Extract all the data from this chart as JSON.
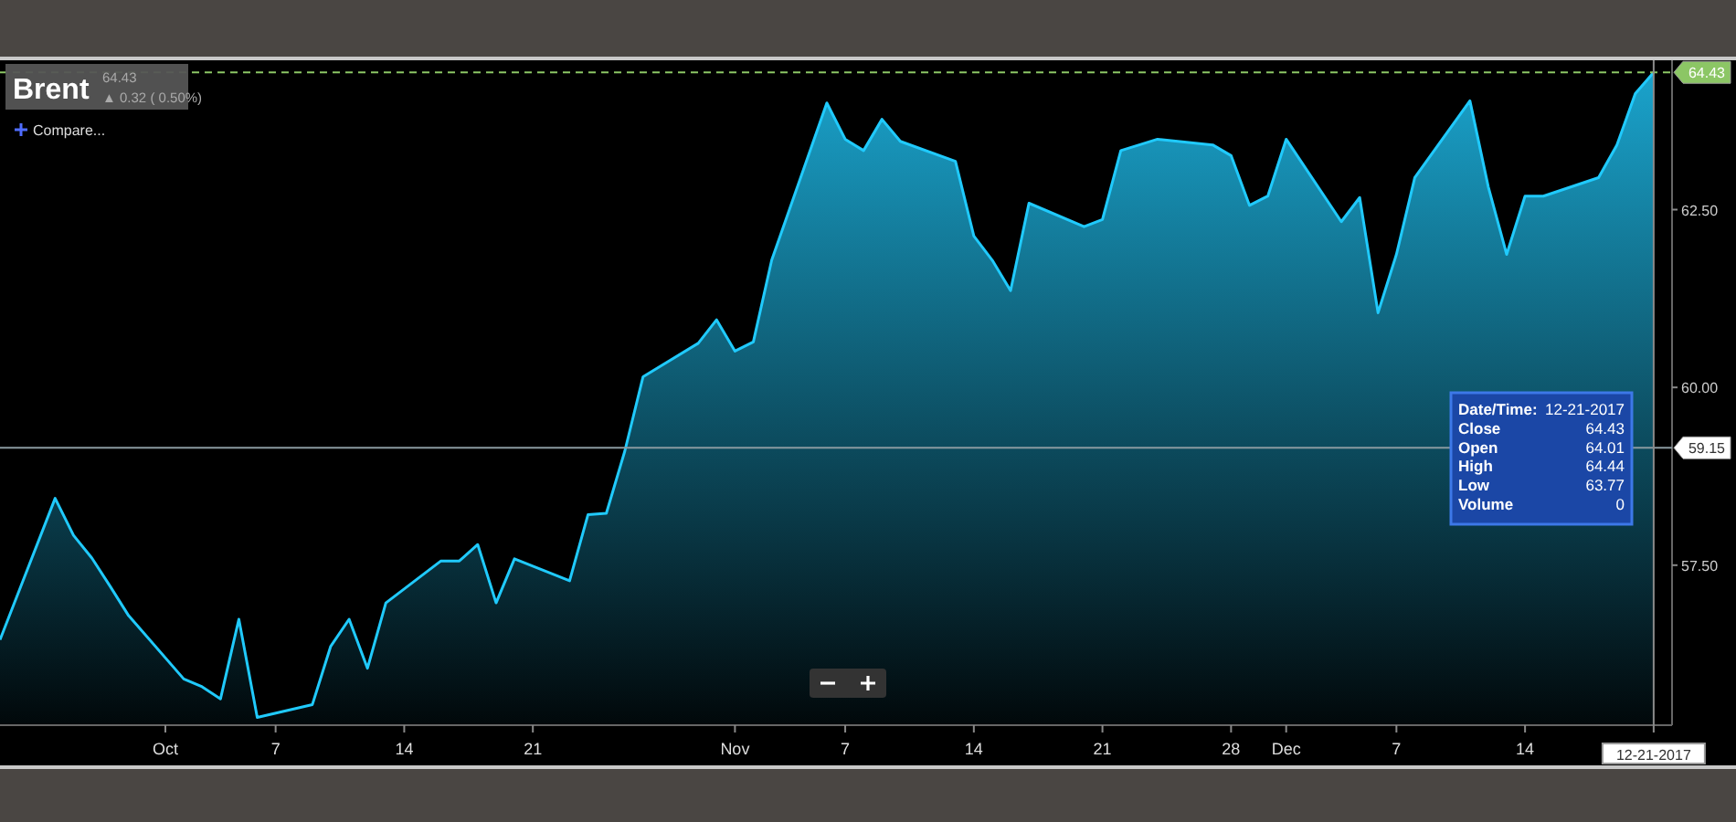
{
  "chart_data": {
    "type": "area",
    "title": "Brent",
    "subtitle": "64.43 ▲ 0.32 ( 0.50%)",
    "x": [
      "2017-09-22",
      "2017-09-25",
      "2017-09-26",
      "2017-09-27",
      "2017-09-28",
      "2017-09-29",
      "2017-10-02",
      "2017-10-03",
      "2017-10-04",
      "2017-10-05",
      "2017-10-06",
      "2017-10-09",
      "2017-10-10",
      "2017-10-11",
      "2017-10-12",
      "2017-10-13",
      "2017-10-16",
      "2017-10-17",
      "2017-10-18",
      "2017-10-19",
      "2017-10-20",
      "2017-10-23",
      "2017-10-24",
      "2017-10-25",
      "2017-10-26",
      "2017-10-27",
      "2017-10-30",
      "2017-10-31",
      "2017-11-01",
      "2017-11-02",
      "2017-11-03",
      "2017-11-06",
      "2017-11-07",
      "2017-11-08",
      "2017-11-09",
      "2017-11-10",
      "2017-11-13",
      "2017-11-14",
      "2017-11-15",
      "2017-11-16",
      "2017-11-17",
      "2017-11-20",
      "2017-11-21",
      "2017-11-22",
      "2017-11-24",
      "2017-11-27",
      "2017-11-28",
      "2017-11-29",
      "2017-11-30",
      "2017-12-01",
      "2017-12-04",
      "2017-12-05",
      "2017-12-06",
      "2017-12-07",
      "2017-12-08",
      "2017-12-11",
      "2017-12-12",
      "2017-12-13",
      "2017-12-14",
      "2017-12-15",
      "2017-12-18",
      "2017-12-19",
      "2017-12-20",
      "2017-12-21"
    ],
    "series": [
      {
        "color": "#1aa3cc",
        "values": [
          56.45,
          58.44,
          57.92,
          57.6,
          57.2,
          56.79,
          55.9,
          55.79,
          55.62,
          56.74,
          55.36,
          55.54,
          56.36,
          56.74,
          56.05,
          56.97,
          57.56,
          57.56,
          57.79,
          56.97,
          57.59,
          57.28,
          58.21,
          58.23,
          59.1,
          60.15,
          60.62,
          60.95,
          60.51,
          60.64,
          61.79,
          64.0,
          63.49,
          63.33,
          63.77,
          63.46,
          63.18,
          62.13,
          61.79,
          61.36,
          62.59,
          62.26,
          62.36,
          63.33,
          63.49,
          63.41,
          63.26,
          62.56,
          62.69,
          63.49,
          62.33,
          62.67,
          61.05,
          61.87,
          62.95,
          64.03,
          62.82,
          61.87,
          62.69,
          62.69,
          62.95,
          63.41,
          64.13,
          64.43
        ]
      }
    ],
    "xlim": [
      "2017-09-22",
      "2017-12-22"
    ],
    "xticks": [
      {
        "value": "2017-10-01",
        "label": "Oct"
      },
      {
        "value": "2017-10-07",
        "label": "7"
      },
      {
        "value": "2017-10-14",
        "label": "14"
      },
      {
        "value": "2017-10-21",
        "label": "21"
      },
      {
        "value": "2017-11-01",
        "label": "Nov"
      },
      {
        "value": "2017-11-07",
        "label": "7"
      },
      {
        "value": "2017-11-14",
        "label": "14"
      },
      {
        "value": "2017-11-21",
        "label": "21"
      },
      {
        "value": "2017-11-28",
        "label": "28"
      },
      {
        "value": "2017-12-01",
        "label": "Dec"
      },
      {
        "value": "2017-12-07",
        "label": "7"
      },
      {
        "value": "2017-12-14",
        "label": "14"
      }
    ],
    "ylim": [
      55.25,
      64.6
    ],
    "yticks": [
      {
        "value": 57.5,
        "label": "57.50"
      },
      {
        "value": 60,
        "label": "60.00"
      },
      {
        "value": 62.5,
        "label": "62.50"
      }
    ],
    "ref_lines": [
      {
        "axis": "y",
        "value": 59.15,
        "label": "59.15",
        "color": "#8a9aa0",
        "line_style": "solid"
      },
      {
        "axis": "y",
        "value": 64.43,
        "label": "64.43",
        "color": "#8cc665",
        "line_style": "dashed"
      },
      {
        "axis": "x",
        "value": "2017-12-21",
        "label": "12-21-2017",
        "color": "#8a8a8a",
        "line_style": "solid"
      }
    ],
    "annotations": [
      "Date/Time: 12-21-2017",
      "Close 64.43",
      "Open 64.01",
      "High 64.44",
      "Low 63.77",
      "Volume 0",
      "Compare..."
    ],
    "grid": false
  }
}
